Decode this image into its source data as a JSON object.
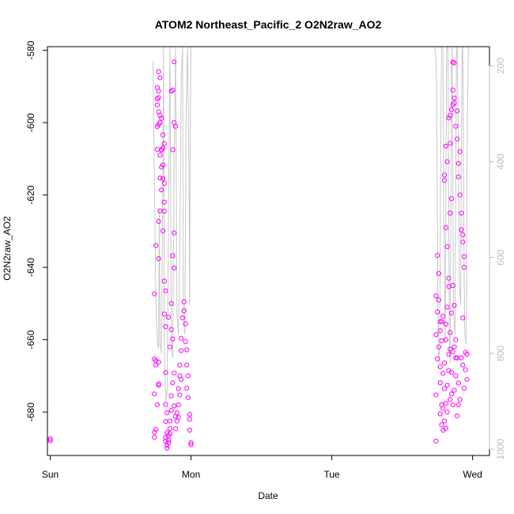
{
  "chart_data": {
    "type": "scatter",
    "title": "ATOM2 Northeast_Pacific_2 O2N2raw_AO2",
    "xlabel": "Date",
    "ylabel": "O2N2raw_AO2",
    "xlim": [
      -0.02,
      3.12
    ],
    "ylim": [
      -692,
      -579
    ],
    "y_ticks": [
      -580,
      -600,
      -620,
      -640,
      -660,
      -680
    ],
    "x_ticks": [
      {
        "value": 0,
        "label": "Sun"
      },
      {
        "value": 1,
        "label": "Mon"
      },
      {
        "value": 2,
        "label": "Tue"
      },
      {
        "value": 3,
        "label": "Wed"
      }
    ],
    "y2_ticks": [
      200,
      400,
      600,
      800,
      1000
    ],
    "y2lim": [
      1013,
      160
    ],
    "colors": {
      "points": "#ff00ff",
      "altitude": "#c8c8c8",
      "axis2": "#bebebe",
      "axis": "#000000"
    },
    "series": [
      {
        "values": [
          [
            0.0,
            -687.4
          ],
          [
            0.0,
            -687.9
          ],
          [
            0.74,
            -687.0
          ],
          [
            0.74,
            -685.6
          ],
          [
            0.75,
            -684.8
          ],
          [
            0.74,
            -675.0
          ],
          [
            0.74,
            -665.3
          ],
          [
            0.75,
            -665.8
          ],
          [
            0.75,
            -667.0
          ],
          [
            0.76,
            -678.0
          ],
          [
            0.77,
            -666.2
          ],
          [
            0.77,
            -672.2
          ],
          [
            0.77,
            -672.6
          ],
          [
            0.74,
            -647.3
          ],
          [
            0.75,
            -634.0
          ],
          [
            0.77,
            -637.6
          ],
          [
            0.76,
            -607.4
          ],
          [
            0.78,
            -615.3
          ],
          [
            0.77,
            -627.3
          ],
          [
            0.78,
            -624.4
          ],
          [
            0.79,
            -607.5
          ],
          [
            0.77,
            -600.5
          ],
          [
            0.76,
            -601.1
          ],
          [
            0.77,
            -597.0
          ],
          [
            0.76,
            -595.1
          ],
          [
            0.76,
            -593.4
          ],
          [
            0.77,
            -593.1
          ],
          [
            0.76,
            -590.3
          ],
          [
            0.77,
            -591.3
          ],
          [
            0.77,
            -585.9
          ],
          [
            0.78,
            -587.6
          ],
          [
            0.78,
            -600.0
          ],
          [
            0.78,
            -598.0
          ],
          [
            0.79,
            -598.8
          ],
          [
            0.79,
            -607.6
          ],
          [
            0.78,
            -609.0
          ],
          [
            0.79,
            -612.3
          ],
          [
            0.79,
            -618.6
          ],
          [
            0.8,
            -611.7
          ],
          [
            0.8,
            -607.0
          ],
          [
            0.81,
            -605.8
          ],
          [
            0.8,
            -603.4
          ],
          [
            0.8,
            -615.5
          ],
          [
            0.81,
            -616.8
          ],
          [
            0.81,
            -622.0
          ],
          [
            0.81,
            -624.5
          ],
          [
            0.8,
            -629.9
          ],
          [
            0.81,
            -643.8
          ],
          [
            0.82,
            -646.5
          ],
          [
            0.81,
            -652.9
          ],
          [
            0.82,
            -656.4
          ],
          [
            0.82,
            -669.1
          ],
          [
            0.82,
            -677.9
          ],
          [
            0.83,
            -680.2
          ],
          [
            0.82,
            -682.6
          ],
          [
            0.83,
            -685.7
          ],
          [
            0.82,
            -688.0
          ],
          [
            0.83,
            -689.2
          ],
          [
            0.83,
            -690.0
          ],
          [
            0.84,
            -688.5
          ],
          [
            0.84,
            -686.6
          ],
          [
            0.85,
            -684.6
          ],
          [
            0.85,
            -682.5
          ],
          [
            0.86,
            -679.5
          ],
          [
            0.86,
            -675.5
          ],
          [
            0.85,
            -662.0
          ],
          [
            0.84,
            -653.8
          ],
          [
            0.86,
            -650.0
          ],
          [
            0.86,
            -657.2
          ],
          [
            0.87,
            -659.8
          ],
          [
            0.88,
            -640.2
          ],
          [
            0.87,
            -636.8
          ],
          [
            0.88,
            -630.5
          ],
          [
            0.87,
            -607.5
          ],
          [
            0.88,
            -600.0
          ],
          [
            0.89,
            -601.0
          ],
          [
            0.87,
            -591.0
          ],
          [
            0.88,
            -583.2
          ],
          [
            0.86,
            -591.3
          ],
          [
            0.87,
            -671.9
          ],
          [
            0.88,
            -669.2
          ],
          [
            0.88,
            -678.3
          ],
          [
            0.89,
            -681.2
          ],
          [
            0.89,
            -684.6
          ],
          [
            0.9,
            -680.2
          ],
          [
            0.9,
            -682.5
          ],
          [
            0.91,
            -681.4
          ],
          [
            0.91,
            -678.0
          ],
          [
            0.91,
            -673.5
          ],
          [
            0.92,
            -675.3
          ],
          [
            0.92,
            -670.0
          ],
          [
            0.93,
            -671.0
          ],
          [
            0.92,
            -667.0
          ],
          [
            0.93,
            -663.0
          ],
          [
            0.93,
            -659.6
          ],
          [
            0.94,
            -654.0
          ],
          [
            0.95,
            -652.0
          ],
          [
            0.95,
            -649.5
          ],
          [
            0.96,
            -655.6
          ],
          [
            0.96,
            -660.5
          ],
          [
            0.97,
            -662.8
          ],
          [
            0.97,
            -667.0
          ],
          [
            0.98,
            -670.0
          ],
          [
            0.97,
            -673.4
          ],
          [
            0.98,
            -676.0
          ],
          [
            0.99,
            -680.6
          ],
          [
            0.99,
            -682.0
          ],
          [
            0.99,
            -685.0
          ],
          [
            1.0,
            -689.0
          ],
          [
            1.0,
            -688.5
          ],
          [
            0.85,
            -686.0
          ],
          [
            0.84,
            -687.8
          ],
          [
            0.82,
            -687.0
          ],
          [
            2.74,
            -688.0
          ],
          [
            2.74,
            -675.3
          ],
          [
            2.75,
            -665.3
          ],
          [
            2.74,
            -658.6
          ],
          [
            2.75,
            -652.3
          ],
          [
            2.74,
            -647.9
          ],
          [
            2.75,
            -636.7
          ],
          [
            2.76,
            -641.7
          ],
          [
            2.76,
            -649.0
          ],
          [
            2.77,
            -655.0
          ],
          [
            2.76,
            -662.0
          ],
          [
            2.77,
            -667.5
          ],
          [
            2.77,
            -671.9
          ],
          [
            2.78,
            -678.0
          ],
          [
            2.77,
            -680.5
          ],
          [
            2.78,
            -683.5
          ],
          [
            2.79,
            -685.0
          ],
          [
            2.79,
            -679.0
          ],
          [
            2.8,
            -673.5
          ],
          [
            2.8,
            -666.4
          ],
          [
            2.81,
            -660.0
          ],
          [
            2.81,
            -655.7
          ],
          [
            2.82,
            -651.0
          ],
          [
            2.83,
            -645.3
          ],
          [
            2.83,
            -643.0
          ],
          [
            2.82,
            -634.3
          ],
          [
            2.81,
            -629.0
          ],
          [
            2.8,
            -614.5
          ],
          [
            2.8,
            -616.0
          ],
          [
            2.81,
            -606.5
          ],
          [
            2.82,
            -610.8
          ],
          [
            2.84,
            -625.0
          ],
          [
            2.85,
            -621.0
          ],
          [
            2.84,
            -605.7
          ],
          [
            2.83,
            -598.7
          ],
          [
            2.84,
            -598.0
          ],
          [
            2.85,
            -596.4
          ],
          [
            2.86,
            -595.0
          ],
          [
            2.87,
            -593.2
          ],
          [
            2.87,
            -594.6
          ],
          [
            2.86,
            -591.0
          ],
          [
            2.86,
            -583.3
          ],
          [
            2.87,
            -583.5
          ],
          [
            2.88,
            -601.0
          ],
          [
            2.89,
            -604.5
          ],
          [
            2.89,
            -596.8
          ],
          [
            2.9,
            -611.3
          ],
          [
            2.9,
            -615.0
          ],
          [
            2.91,
            -608.0
          ],
          [
            2.91,
            -620.0
          ],
          [
            2.92,
            -625.0
          ],
          [
            2.92,
            -629.6
          ],
          [
            2.93,
            -631.0
          ],
          [
            2.93,
            -633.0
          ],
          [
            2.94,
            -637.0
          ],
          [
            2.94,
            -640.0
          ],
          [
            2.93,
            -654.0
          ],
          [
            2.92,
            -665.0
          ],
          [
            2.93,
            -667.0
          ],
          [
            2.94,
            -673.4
          ],
          [
            2.95,
            -663.5
          ],
          [
            2.95,
            -668.3
          ],
          [
            2.96,
            -671.0
          ],
          [
            2.96,
            -664.0
          ],
          [
            2.87,
            -650.5
          ],
          [
            2.86,
            -645.0
          ],
          [
            2.85,
            -652.6
          ],
          [
            2.84,
            -662.6
          ],
          [
            2.83,
            -668.5
          ],
          [
            2.82,
            -672.6
          ],
          [
            2.81,
            -677.6
          ],
          [
            2.8,
            -682.5
          ],
          [
            2.79,
            -669.3
          ],
          [
            2.78,
            -660.3
          ],
          [
            2.77,
            -657.5
          ],
          [
            2.79,
            -653.5
          ],
          [
            2.78,
            -655.0
          ],
          [
            2.85,
            -669.0
          ],
          [
            2.86,
            -663.3
          ],
          [
            2.87,
            -674.0
          ],
          [
            2.88,
            -670.0
          ],
          [
            2.88,
            -660.0
          ],
          [
            2.89,
            -665.0
          ],
          [
            2.9,
            -672.0
          ],
          [
            2.91,
            -676.5
          ],
          [
            2.9,
            -678.0
          ],
          [
            2.89,
            -681.0
          ],
          [
            2.86,
            -678.0
          ],
          [
            2.84,
            -676.5
          ],
          [
            2.82,
            -680.0
          ],
          [
            2.81,
            -684.5
          ],
          [
            2.83,
            -664.0
          ],
          [
            2.84,
            -658.0
          ],
          [
            2.88,
            -665.0
          ],
          [
            2.87,
            -662.0
          ],
          [
            2.85,
            -675.0
          ]
        ]
      }
    ],
    "altitude_segments": [
      [
        [
          0.73,
          190
        ],
        [
          0.74,
          450
        ],
        [
          0.75,
          680
        ],
        [
          0.76,
          780
        ],
        [
          0.77,
          790
        ],
        [
          0.775,
          500
        ],
        [
          0.78,
          780
        ],
        [
          0.79,
          800
        ],
        [
          0.8,
          430
        ],
        [
          0.805,
          160
        ],
        [
          0.81,
          780
        ],
        [
          0.82,
          900
        ],
        [
          0.83,
          880
        ],
        [
          0.84,
          500
        ],
        [
          0.85,
          160
        ],
        [
          0.86,
          780
        ],
        [
          0.87,
          810
        ],
        [
          0.88,
          380
        ],
        [
          0.89,
          160
        ],
        [
          0.9,
          720
        ],
        [
          0.91,
          760
        ],
        [
          0.92,
          600
        ],
        [
          0.93,
          230
        ],
        [
          0.94,
          160
        ],
        [
          0.945,
          720
        ],
        [
          0.955,
          760
        ],
        [
          0.965,
          300
        ],
        [
          0.975,
          160
        ],
        [
          0.985,
          400
        ],
        [
          0.99,
          700
        ],
        [
          0.995,
          300
        ],
        [
          1.0,
          160
        ]
      ],
      [
        [
          2.73,
          160
        ],
        [
          2.74,
          180
        ],
        [
          2.745,
          300
        ],
        [
          2.75,
          500
        ],
        [
          2.755,
          780
        ],
        [
          2.765,
          820
        ],
        [
          2.77,
          600
        ],
        [
          2.775,
          300
        ],
        [
          2.78,
          160
        ],
        [
          2.79,
          170
        ],
        [
          2.795,
          500
        ],
        [
          2.805,
          780
        ],
        [
          2.81,
          500
        ],
        [
          2.815,
          170
        ],
        [
          2.825,
          160
        ],
        [
          2.83,
          500
        ],
        [
          2.835,
          800
        ],
        [
          2.84,
          820
        ],
        [
          2.845,
          520
        ],
        [
          2.85,
          200
        ],
        [
          2.855,
          160
        ],
        [
          2.86,
          480
        ],
        [
          2.865,
          720
        ],
        [
          2.875,
          760
        ],
        [
          2.88,
          450
        ],
        [
          2.885,
          170
        ],
        [
          2.89,
          160
        ],
        [
          2.9,
          350
        ],
        [
          2.905,
          650
        ],
        [
          2.915,
          700
        ],
        [
          2.92,
          400
        ],
        [
          2.925,
          170
        ],
        [
          2.93,
          160
        ],
        [
          2.935,
          400
        ],
        [
          2.94,
          650
        ],
        [
          2.945,
          760
        ],
        [
          2.955,
          780
        ],
        [
          2.96,
          400
        ],
        [
          2.97,
          160
        ]
      ]
    ]
  }
}
